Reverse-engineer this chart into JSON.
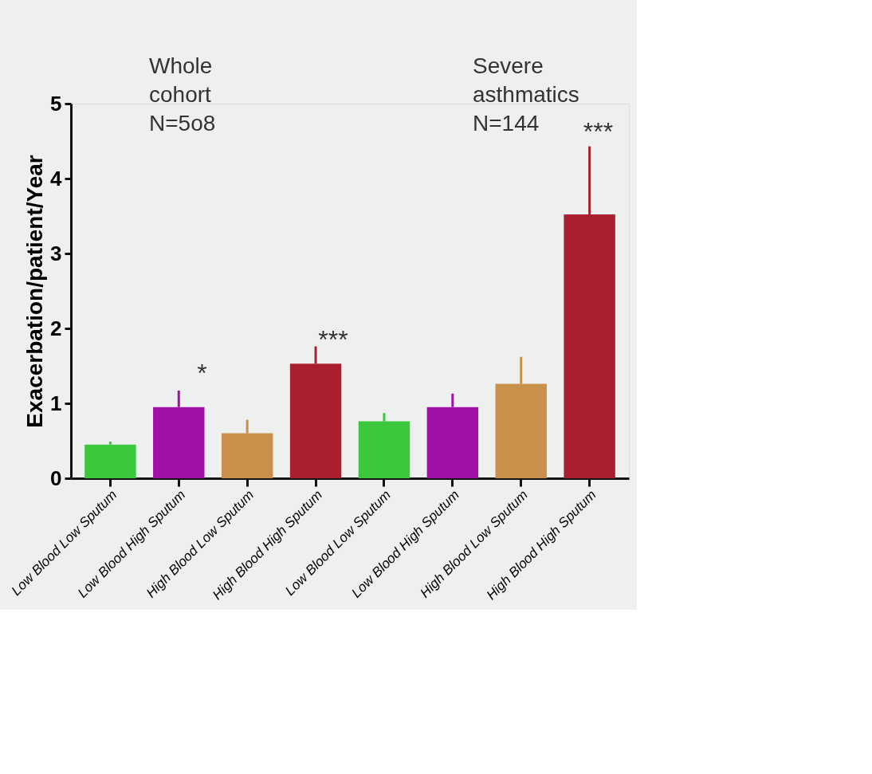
{
  "chart_data": {
    "type": "bar",
    "ylabel": "Exacerbation/patient/Year",
    "categories": [
      "Low Blood Low Sputum",
      "Low Blood High Sputum",
      "High Blood Low Sputum",
      "High Blood High Sputum",
      "Low Blood Low Sputum",
      "Low Blood High Sputum",
      "High Blood Low Sputum",
      "High Blood High Sputum"
    ],
    "values": [
      0.45,
      0.95,
      0.6,
      1.53,
      0.76,
      0.95,
      1.26,
      3.52
    ],
    "colors": [
      "#3cc83c",
      "#a010a8",
      "#c8904a",
      "#a82030",
      "#3cc83c",
      "#a010a8",
      "#c8904a",
      "#a82030"
    ],
    "errors": [
      [
        0.45,
        0.49
      ],
      [
        0.95,
        1.17
      ],
      [
        0.6,
        0.78
      ],
      [
        1.53,
        1.76
      ],
      [
        0.76,
        0.87
      ],
      [
        0.95,
        1.13
      ],
      [
        1.26,
        1.62
      ],
      [
        3.52,
        4.43
      ]
    ],
    "ylim": [
      0,
      5
    ],
    "yticks": [
      0,
      1,
      2,
      3,
      4,
      5
    ],
    "grid": false,
    "annotations": [
      "Whole\ncohort\nN=5o8",
      "Severe\nasthmatics\nN=144",
      "*",
      "***",
      "***"
    ]
  }
}
